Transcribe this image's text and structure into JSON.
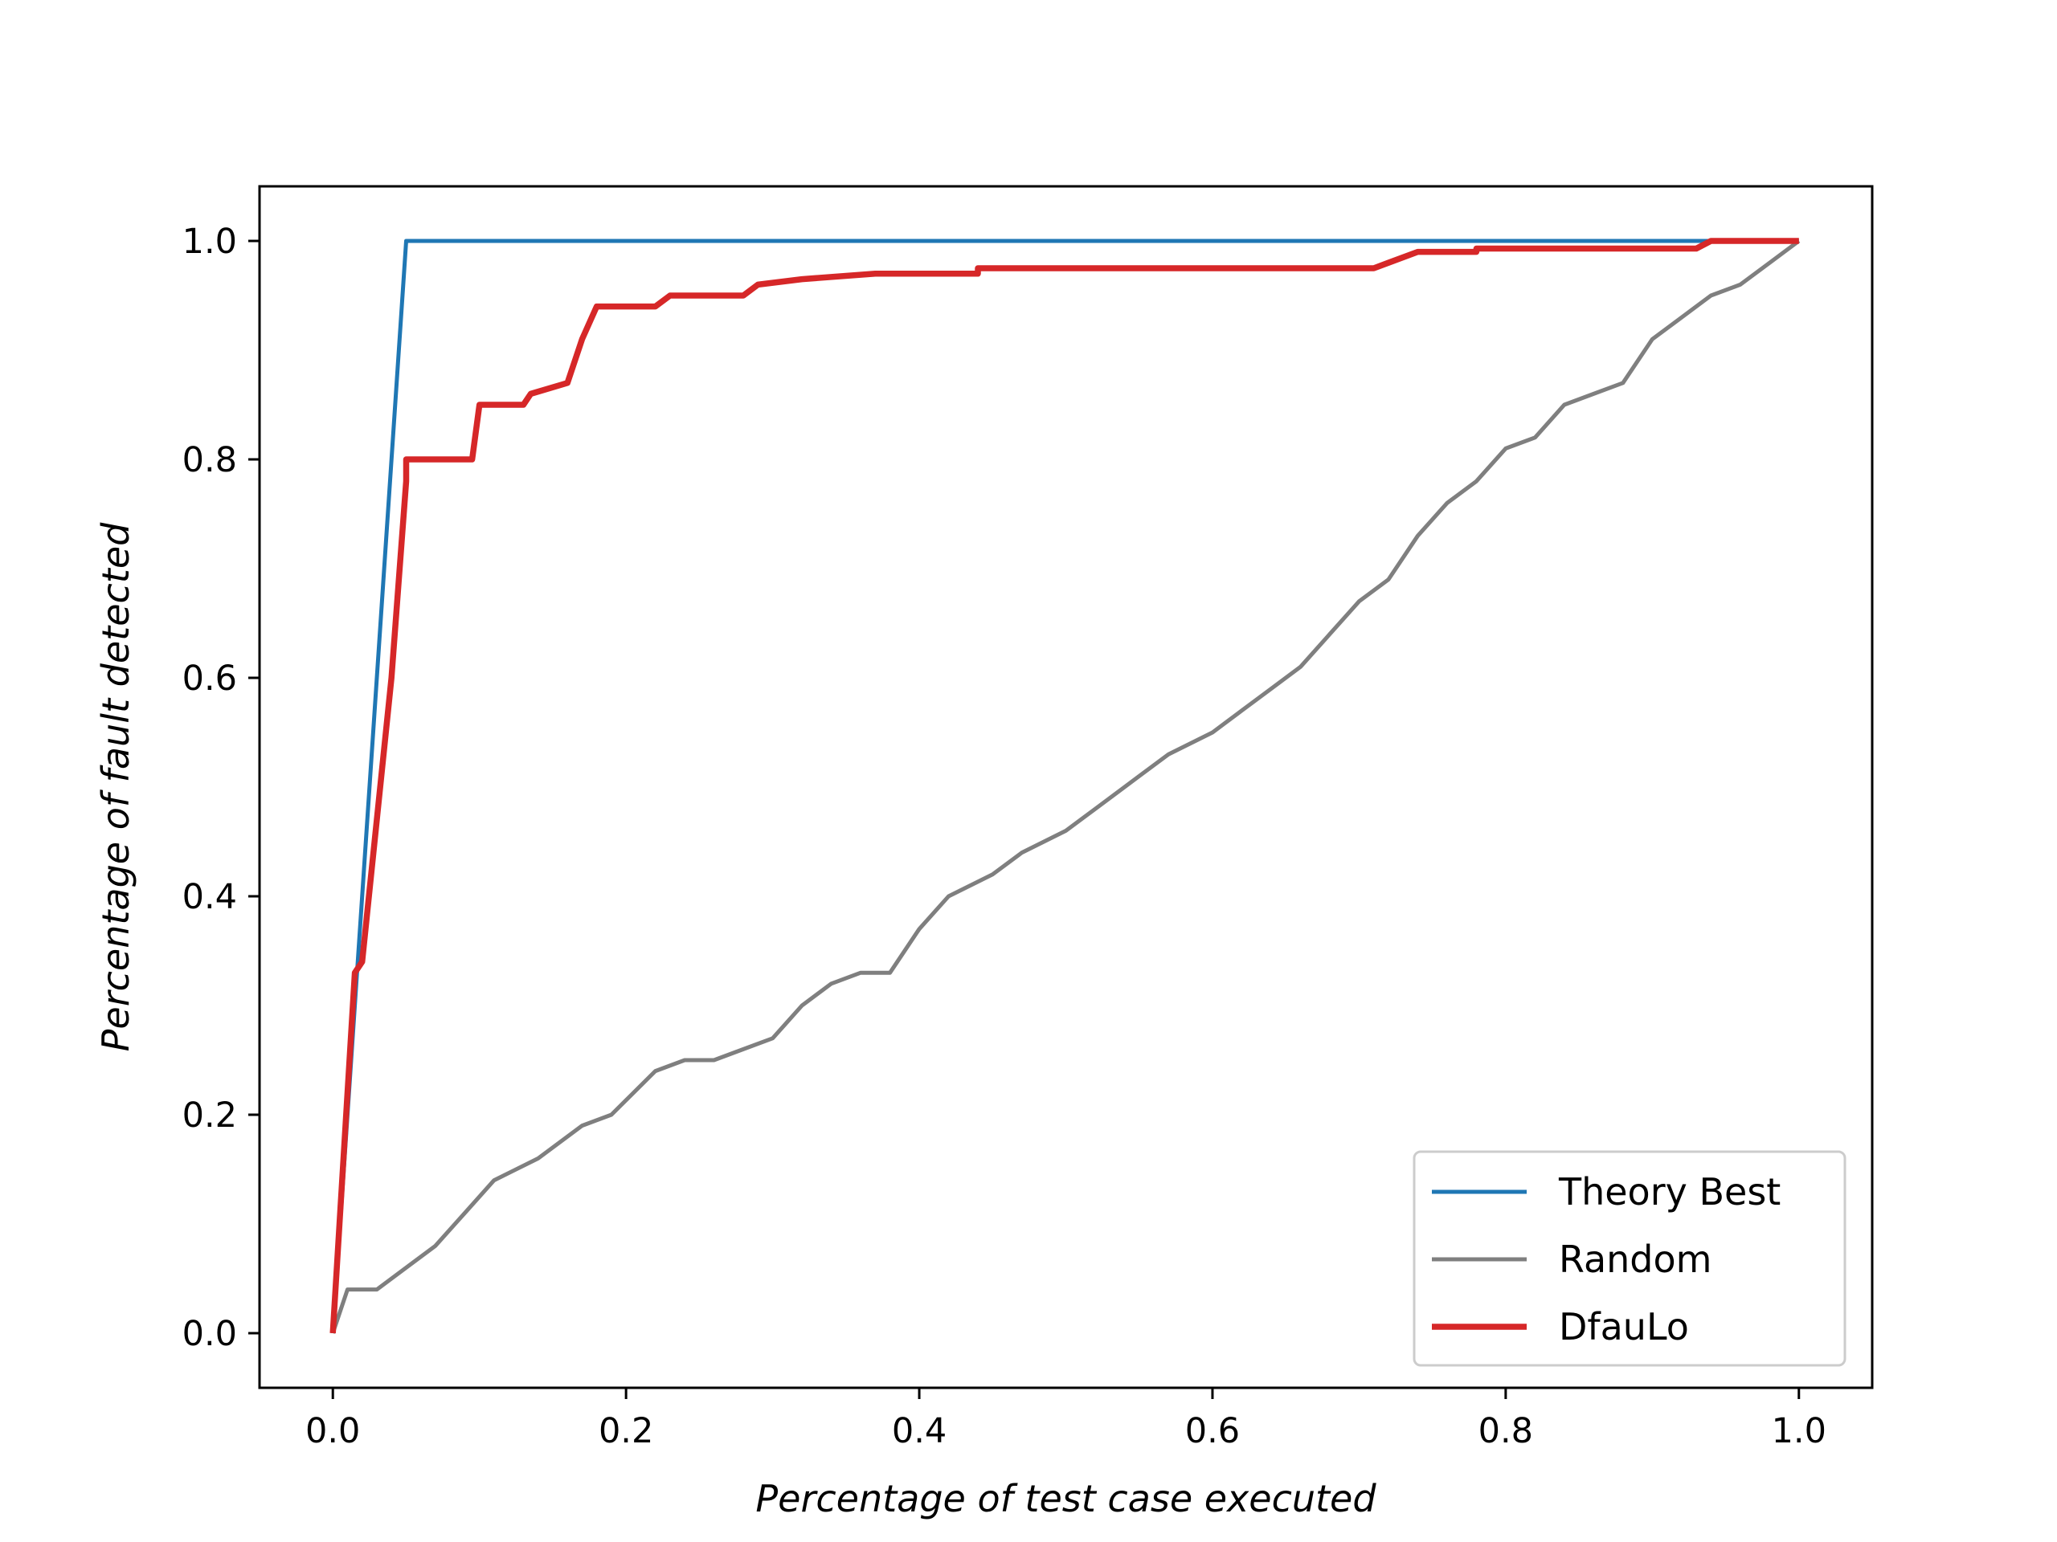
{
  "chart_data": {
    "type": "line",
    "xlabel": "Percentage of test case executed",
    "ylabel": "Percentage of fault detected",
    "xlim": [
      -0.05,
      1.05
    ],
    "ylim": [
      -0.05,
      1.05
    ],
    "xticks": [
      "0.0",
      "0.2",
      "0.4",
      "0.6",
      "0.8",
      "1.0"
    ],
    "yticks": [
      "0.0",
      "0.2",
      "0.4",
      "0.6",
      "0.8",
      "1.0"
    ],
    "grid": false,
    "legend_position": "lower-right",
    "series": [
      {
        "name": "Theory Best",
        "color": "#1f77b4",
        "points": [
          [
            0.0,
            0.0
          ],
          [
            0.05,
            1.0
          ],
          [
            0.93,
            1.0
          ],
          [
            1.0,
            1.0
          ]
        ]
      },
      {
        "name": "Random",
        "color": "#7f7f7f",
        "points": [
          [
            0.0,
            0.0
          ],
          [
            0.01,
            0.04
          ],
          [
            0.03,
            0.04
          ],
          [
            0.05,
            0.06
          ],
          [
            0.07,
            0.08
          ],
          [
            0.09,
            0.11
          ],
          [
            0.11,
            0.14
          ],
          [
            0.14,
            0.16
          ],
          [
            0.17,
            0.19
          ],
          [
            0.19,
            0.2
          ],
          [
            0.22,
            0.24
          ],
          [
            0.24,
            0.25
          ],
          [
            0.26,
            0.25
          ],
          [
            0.28,
            0.26
          ],
          [
            0.3,
            0.27
          ],
          [
            0.32,
            0.3
          ],
          [
            0.34,
            0.32
          ],
          [
            0.36,
            0.33
          ],
          [
            0.38,
            0.33
          ],
          [
            0.4,
            0.37
          ],
          [
            0.42,
            0.4
          ],
          [
            0.45,
            0.42
          ],
          [
            0.47,
            0.44
          ],
          [
            0.5,
            0.46
          ],
          [
            0.52,
            0.48
          ],
          [
            0.55,
            0.51
          ],
          [
            0.57,
            0.53
          ],
          [
            0.6,
            0.55
          ],
          [
            0.62,
            0.57
          ],
          [
            0.64,
            0.59
          ],
          [
            0.66,
            0.61
          ],
          [
            0.68,
            0.64
          ],
          [
            0.7,
            0.67
          ],
          [
            0.72,
            0.69
          ],
          [
            0.74,
            0.73
          ],
          [
            0.76,
            0.76
          ],
          [
            0.78,
            0.78
          ],
          [
            0.8,
            0.81
          ],
          [
            0.82,
            0.82
          ],
          [
            0.84,
            0.85
          ],
          [
            0.86,
            0.86
          ],
          [
            0.88,
            0.87
          ],
          [
            0.9,
            0.91
          ],
          [
            0.92,
            0.93
          ],
          [
            0.94,
            0.95
          ],
          [
            0.96,
            0.96
          ],
          [
            0.98,
            0.98
          ],
          [
            1.0,
            1.0
          ]
        ]
      },
      {
        "name": "DfauLo",
        "color": "#d62728",
        "points": [
          [
            0.0,
            0.0
          ],
          [
            0.015,
            0.33
          ],
          [
            0.02,
            0.34
          ],
          [
            0.04,
            0.6
          ],
          [
            0.05,
            0.78
          ],
          [
            0.05,
            0.8
          ],
          [
            0.095,
            0.8
          ],
          [
            0.1,
            0.85
          ],
          [
            0.13,
            0.85
          ],
          [
            0.135,
            0.86
          ],
          [
            0.16,
            0.87
          ],
          [
            0.17,
            0.91
          ],
          [
            0.18,
            0.94
          ],
          [
            0.22,
            0.94
          ],
          [
            0.23,
            0.95
          ],
          [
            0.28,
            0.95
          ],
          [
            0.29,
            0.96
          ],
          [
            0.32,
            0.965
          ],
          [
            0.37,
            0.97
          ],
          [
            0.44,
            0.97
          ],
          [
            0.44,
            0.975
          ],
          [
            0.71,
            0.975
          ],
          [
            0.72,
            0.98
          ],
          [
            0.74,
            0.99
          ],
          [
            0.78,
            0.99
          ],
          [
            0.78,
            0.993
          ],
          [
            0.93,
            0.993
          ],
          [
            0.94,
            1.0
          ],
          [
            1.0,
            1.0
          ]
        ]
      }
    ]
  }
}
